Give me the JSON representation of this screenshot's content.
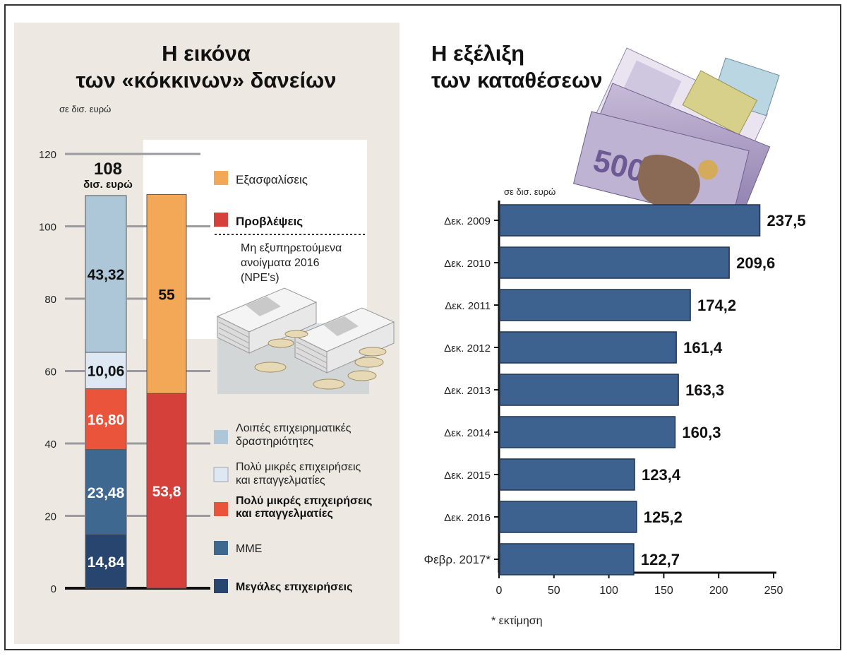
{
  "colors": {
    "panel_bg": "#ede8e2",
    "ls_blue": "#adc6d8",
    "pale_blue": "#dde8f2",
    "orange_red": "#e9543a",
    "mid_blue": "#3f6891",
    "navy": "#27456e",
    "orange": "#f2a857",
    "red": "#d5403b",
    "bar_blue": "#3e6290"
  },
  "left": {
    "title_line1": "Η εικόνα",
    "title_line2": "των «κόκκινων» δανείων",
    "units": "σε δισ. ευρώ",
    "total_value": "108",
    "total_unit": "δισ. ευρώ",
    "npe_note": [
      "Μη εξυπηρετούμενα",
      "ανοίγματα 2016",
      "(NPE's)"
    ],
    "legend_top": [
      {
        "label": "Εξασφαλίσεις",
        "color": "#f2a857",
        "bold": false
      },
      {
        "label": "Προβλέψεις",
        "color": "#d5403b",
        "bold": true
      }
    ],
    "legend_bottom": [
      {
        "lines": [
          "Λοιπές επιχειρηματικές",
          "δραστηριότητες"
        ],
        "color": "#adc6d8",
        "bold": false
      },
      {
        "lines": [
          "Πολύ μικρές επιχειρήσεις",
          "και επαγγελματίες"
        ],
        "color": "#dde8f2",
        "bold": false
      },
      {
        "lines": [
          "Πολύ μικρές επιχειρήσεις",
          "και επαγγελματίες"
        ],
        "color": "#e9543a",
        "bold": true
      },
      {
        "lines": [
          "ΜΜΕ"
        ],
        "color": "#3f6891",
        "bold": false
      },
      {
        "lines": [
          "Μεγάλες επιχειρήσεις"
        ],
        "color": "#27456e",
        "bold": true
      }
    ]
  },
  "right": {
    "title_line1": "Η εξέλιξη",
    "title_line2": "των καταθέσεων",
    "units": "σε δισ. ευρώ",
    "footnote": "* εκτίμηση"
  },
  "chart_data": [
    {
      "type": "bar",
      "orientation": "vertical-stacked",
      "title": "Η εικόνα των «κόκκινων» δανείων",
      "ylabel": "σε δισ. ευρώ",
      "ylim": [
        0,
        120
      ],
      "yticks": [
        0,
        20,
        40,
        60,
        80,
        100,
        120
      ],
      "stack_total": 108,
      "stacks": [
        {
          "name": "",
          "segments": [
            {
              "name": "Μεγάλες επιχειρήσεις",
              "value": 14.84,
              "label": "14,84",
              "color": "#27456e",
              "label_color": "#ffffff"
            },
            {
              "name": "ΜΜΕ",
              "value": 23.48,
              "label": "23,48",
              "color": "#3f6891",
              "label_color": "#ffffff"
            },
            {
              "name": "Πολύ μικρές επιχειρήσεις και επαγγελματίες",
              "value": 16.8,
              "label": "16,80",
              "color": "#e9543a",
              "label_color": "#ffffff"
            },
            {
              "name": "Πολύ μικρές επιχειρήσεις και επαγγελματίες",
              "value": 10.06,
              "label": "10,06",
              "color": "#dde8f2",
              "label_color": "#111111"
            },
            {
              "name": "Λοιπές επιχειρηματικές δραστηριότητες",
              "value": 43.32,
              "label": "43,32",
              "color": "#adc6d8",
              "label_color": "#111111"
            }
          ]
        },
        {
          "name": "",
          "segments": [
            {
              "name": "Προβλέψεις",
              "value": 53.8,
              "label": "53,8",
              "color": "#d5403b",
              "label_color": "#ffffff"
            },
            {
              "name": "Εξασφαλίσεις",
              "value": 55,
              "label": "55",
              "color": "#f2a857",
              "label_color": "#111111"
            }
          ]
        }
      ]
    },
    {
      "type": "bar",
      "orientation": "horizontal",
      "title": "Η εξέλιξη των καταθέσεων",
      "xlabel": "σε δισ. ευρώ",
      "xlim": [
        0,
        250
      ],
      "xticks": [
        0,
        50,
        100,
        150,
        200,
        250
      ],
      "categories": [
        "Δεκ. 2009",
        "Δεκ. 2010",
        "Δεκ. 2011",
        "Δεκ. 2012",
        "Δεκ. 2013",
        "Δεκ. 2014",
        "Δεκ. 2015",
        "Δεκ. 2016",
        "Φεβρ. 2017*"
      ],
      "values": [
        237.5,
        209.6,
        174.2,
        161.4,
        163.3,
        160.3,
        123.4,
        125.2,
        122.7
      ],
      "labels": [
        "237,5",
        "209,6",
        "174,2",
        "161,4",
        "163,3",
        "160,3",
        "123,4",
        "125,2",
        "122,7"
      ],
      "color": "#3e6290"
    }
  ]
}
